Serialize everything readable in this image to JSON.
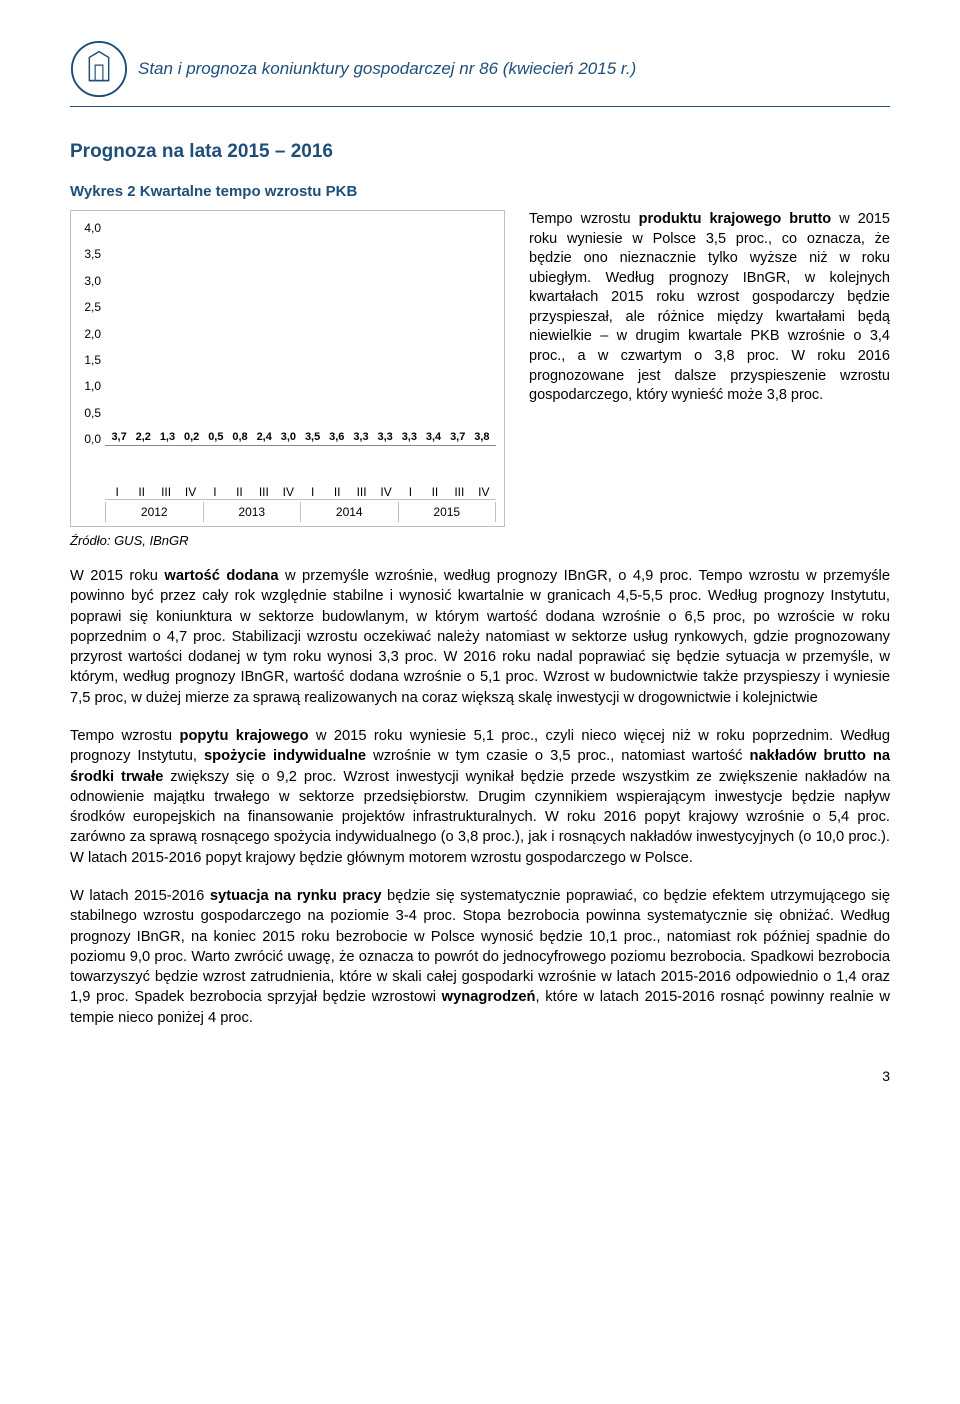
{
  "header": {
    "title": "Stan i prognoza koniunktury gospodarczej nr 86 (kwiecień 2015 r.)"
  },
  "section_title": "Prognoza na lata 2015 – 2016",
  "chart": {
    "title": "Wykres 2 Kwartalne tempo wzrostu PKB",
    "type": "bar",
    "ylim": [
      0.0,
      4.0
    ],
    "ytick_step": 0.5,
    "yticks": [
      "4,0",
      "3,5",
      "3,0",
      "2,5",
      "2,0",
      "1,5",
      "1,0",
      "0,5",
      "0,0"
    ],
    "label_fontsize": 12,
    "bar_label_fontsize": 11,
    "border_color": "#bfbfbf",
    "background_color": "#ffffff",
    "colors": {
      "y2012": "#1f4e9c",
      "y2013": "#9fb7e4",
      "y2014": "#97c94c",
      "y2015": "#e02020"
    },
    "years": [
      {
        "year": "2012",
        "color": "#1f4e9c",
        "quarters": [
          "I",
          "II",
          "III",
          "IV"
        ],
        "values": [
          3.7,
          2.2,
          1.3,
          0.2
        ],
        "labels": [
          "3,7",
          "2,2",
          "1,3",
          "0,2"
        ]
      },
      {
        "year": "2013",
        "color": "#9fb7e4",
        "quarters": [
          "I",
          "II",
          "III",
          "IV"
        ],
        "values": [
          0.5,
          0.8,
          2.4,
          3.0
        ],
        "labels": [
          "0,5",
          "0,8",
          "2,4",
          "3,0"
        ]
      },
      {
        "year": "2014",
        "color": "#97c94c",
        "quarters": [
          "I",
          "II",
          "III",
          "IV"
        ],
        "values": [
          3.5,
          3.6,
          3.3,
          3.3
        ],
        "labels": [
          "3,5",
          "3,6",
          "3,3",
          "3,3"
        ]
      },
      {
        "year": "2015",
        "color": "#e02020",
        "quarters": [
          "I",
          "II",
          "III",
          "IV"
        ],
        "values": [
          3.3,
          3.4,
          3.7,
          3.8
        ],
        "labels": [
          "3,3",
          "3,4",
          "3,7",
          "3,8"
        ]
      }
    ]
  },
  "source": "Źródło: GUS, IBnGR",
  "side_text": "Tempo wzrostu <b>produktu krajowego brutto</b> w 2015 roku wyniesie w Polsce 3,5 proc., co oznacza, że będzie ono nieznacznie tylko wyższe niż w roku ubiegłym. Według prognozy IBnGR, w kolejnych kwartałach 2015 roku wzrost gospodarczy będzie przyspieszał, ale różnice między kwartałami będą niewielkie – w drugim kwartale PKB wzrośnie o 3,4 proc., a w czwartym o 3,8 proc. W roku 2016 prognozowane jest dalsze przyspieszenie wzrostu gospodarczego, który wynieść może 3,8 proc.",
  "para1": "W 2015 roku <b>wartość dodana</b> w przemyśle wzrośnie, według prognozy IBnGR, o 4,9 proc. Tempo wzrostu w przemyśle powinno być przez cały rok względnie stabilne i wynosić kwartalnie w granicach 4,5-5,5 proc. Według prognozy Instytutu, poprawi się koniunktura w sektorze budowlanym, w którym wartość dodana wzrośnie o 6,5 proc, po wzroście w roku poprzednim o 4,7 proc. Stabilizacji wzrostu oczekiwać należy natomiast w sektorze usług rynkowych, gdzie prognozowany przyrost wartości dodanej w tym roku wynosi 3,3 proc. W 2016 roku nadal poprawiać się będzie sytuacja w przemyśle, w którym, według prognozy IBnGR, wartość dodana wzrośnie o 5,1 proc. Wzrost w budownictwie także przyspieszy i wyniesie 7,5 proc, w dużej mierze za sprawą realizowanych na coraz większą skalę inwestycji w drogownictwie i kolejnictwie",
  "para2": "Tempo wzrostu <b>popytu krajowego</b> w 2015 roku wyniesie 5,1 proc., czyli nieco więcej niż w roku poprzednim. Według prognozy Instytutu, <b>spożycie indywidualne</b> wzrośnie w tym czasie o 3,5 proc., natomiast wartość <b>nakładów brutto na środki trwałe</b> zwiększy się o 9,2 proc. Wzrost inwestycji wynikał będzie przede wszystkim ze zwiększenie nakładów na odnowienie majątku trwałego w sektorze przedsiębiorstw. Drugim czynnikiem wspierającym inwestycje będzie napływ środków europejskich na finansowanie projektów infrastrukturalnych. W roku 2016 popyt krajowy wzrośnie o 5,4 proc. zarówno za sprawą rosnącego spożycia indywidualnego (o 3,8 proc.), jak i rosnących nakładów inwestycyjnych (o 10,0 proc.). W latach 2015-2016 popyt krajowy będzie głównym motorem wzrostu gospodarczego w Polsce.",
  "para3": "W latach 2015-2016 <b>sytuacja na rynku pracy</b> będzie się systematycznie poprawiać, co będzie efektem utrzymującego się stabilnego wzrostu gospodarczego na poziomie 3-4 proc. Stopa bezrobocia powinna systematycznie się obniżać. Według prognozy IBnGR, na koniec 2015 roku bezrobocie w Polsce wynosić będzie 10,1 proc., natomiast rok później spadnie do poziomu 9,0 proc. Warto zwrócić uwagę, że oznacza to powrót do jednocyfrowego poziomu bezrobocia. Spadkowi bezrobocia towarzyszyć będzie wzrost zatrudnienia, które w skali całej gospodarki wzrośnie w latach 2015-2016 odpowiednio o 1,4 oraz 1,9 proc. Spadek bezrobocia sprzyjał będzie wzrostowi <b>wynagrodzeń</b>, które w latach 2015-2016 rosnąć powinny realnie w tempie nieco poniżej 4 proc.",
  "page_number": "3"
}
